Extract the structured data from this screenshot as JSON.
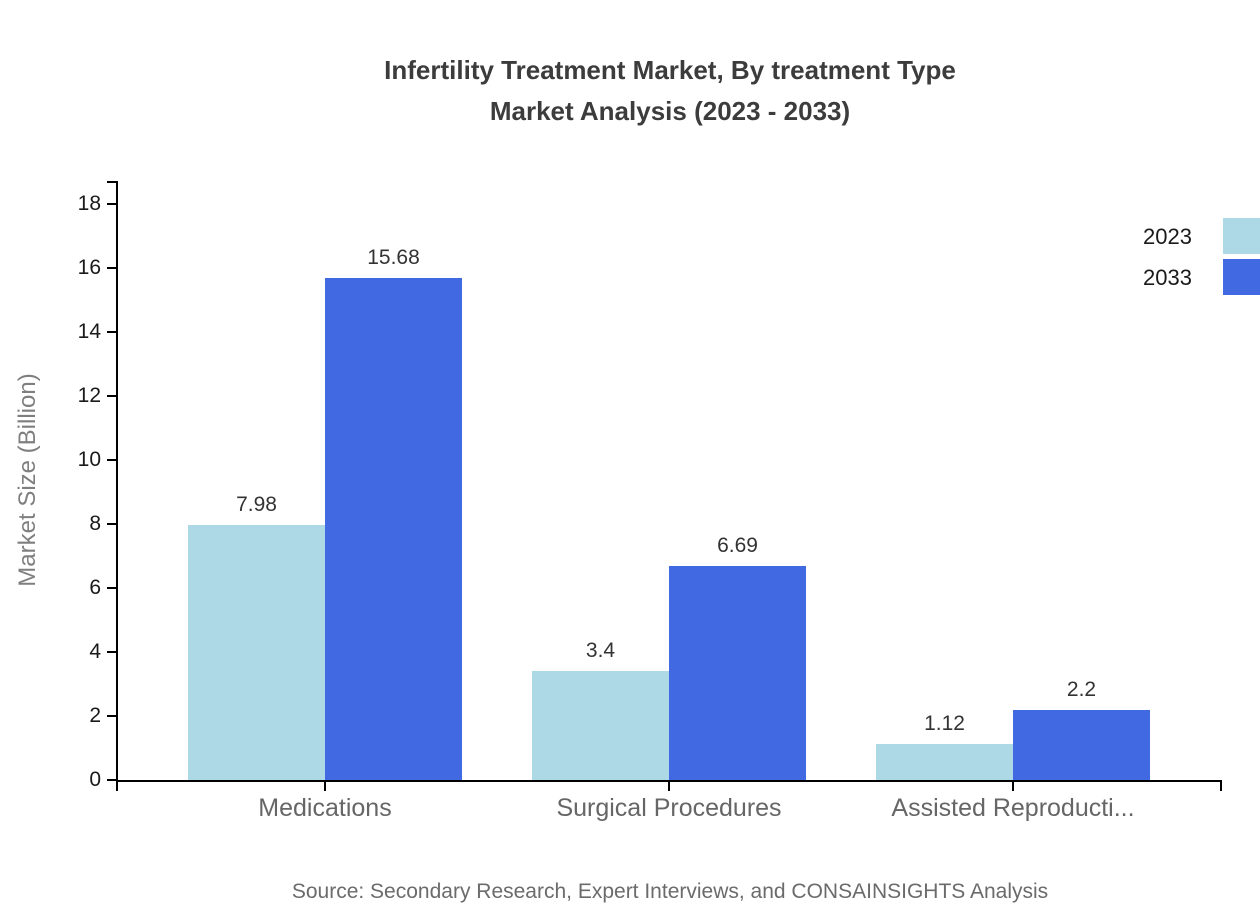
{
  "page": {
    "background": "#ffffff"
  },
  "chart_data": {
    "type": "bar",
    "title": "Infertility Treatment Market, By treatment Type Market Analysis (2023 - 2033)",
    "title_lines": [
      "Infertility Treatment Market, By treatment Type",
      "Market Analysis (2023 - 2033)"
    ],
    "categories": [
      "Medications",
      "Surgical Procedures",
      "Assisted Reproducti..."
    ],
    "series": [
      {
        "name": "2023",
        "color": "#add8e6",
        "values": [
          7.98,
          3.4,
          1.12
        ]
      },
      {
        "name": "2033",
        "color": "#4169e1",
        "values": [
          15.68,
          6.69,
          2.2
        ]
      }
    ],
    "xlabel": "",
    "ylabel": "Market Size (Billion)",
    "ylim": [
      0,
      18.72
    ],
    "yticks": [
      0,
      2,
      4,
      6,
      8,
      10,
      12,
      14,
      16,
      18
    ],
    "grid": false,
    "legend_position": "top-right",
    "axis_color": "#000000",
    "tick_label_color": "#1a1a1a",
    "value_label_color": "#333333",
    "category_label_color": "#666666",
    "title_color": "#3c3c3c",
    "ylabel_color": "#7f7f7f"
  },
  "footer": {
    "source": "Source: Secondary Research, Expert Interviews, and CONSAINSIGHTS Analysis"
  }
}
